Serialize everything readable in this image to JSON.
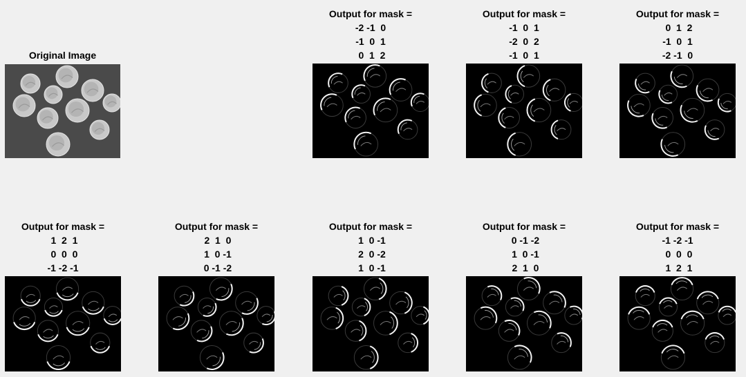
{
  "original": {
    "title": "Original Image"
  },
  "mask_label": "Output for mask =",
  "top_panels": [
    {
      "rows": [
        "-2 -1  0",
        "-1  0  1",
        " 0  1  2"
      ],
      "light": "top-left"
    },
    {
      "rows": [
        "-1  0  1",
        "-2  0  2",
        "-1  0  1"
      ],
      "light": "left"
    },
    {
      "rows": [
        " 0  1  2",
        "-1  0  1",
        "-2 -1  0"
      ],
      "light": "bottom-left"
    }
  ],
  "bottom_panels": [
    {
      "rows": [
        " 1  2  1",
        " 0  0  0",
        "-1 -2 -1"
      ],
      "light": "bottom"
    },
    {
      "rows": [
        " 2  1  0",
        " 1  0 -1",
        " 0 -1 -2"
      ],
      "light": "bottom-right"
    },
    {
      "rows": [
        " 1  0 -1",
        " 2  0 -2",
        " 1  0 -1"
      ],
      "light": "right"
    },
    {
      "rows": [
        " 0 -1 -2",
        " 1  0 -1",
        " 2  1  0"
      ],
      "light": "top-right"
    },
    {
      "rows": [
        "-1 -2 -1",
        " 0  0  0",
        " 1  2  1"
      ],
      "light": "top"
    }
  ]
}
